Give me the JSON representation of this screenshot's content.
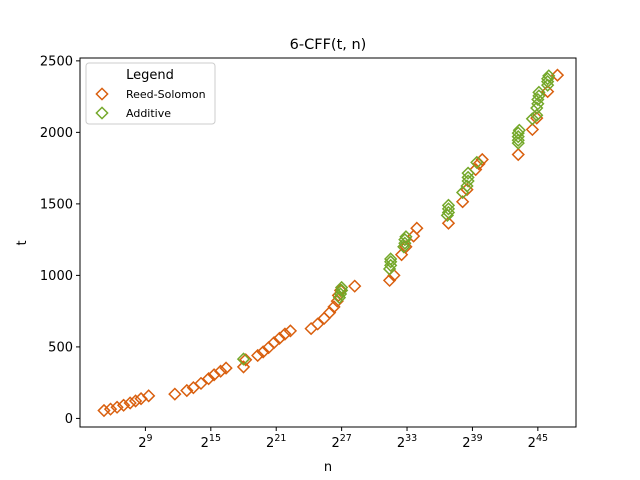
{
  "chart_data": {
    "type": "scatter",
    "title": "6-CFF(t, n)",
    "xlabel": "n",
    "ylabel": "t",
    "x_scale": "log2",
    "x_tick_exponents": [
      9,
      15,
      21,
      27,
      33,
      39,
      45
    ],
    "x_tick_base": "2",
    "xlim_log2": [
      3.0,
      48.5
    ],
    "ylim": [
      -60,
      2520
    ],
    "y_ticks": [
      0,
      500,
      1000,
      1500,
      2000,
      2500
    ],
    "legend": {
      "title": "Legend",
      "position": "top-left"
    },
    "marker": "open-diamond",
    "series": [
      {
        "name": "Reed-Solomon",
        "color": "#d95f0e",
        "points_log2x": [
          [
            5.2,
            55
          ],
          [
            5.8,
            65
          ],
          [
            6.4,
            78
          ],
          [
            7.0,
            92
          ],
          [
            7.6,
            108
          ],
          [
            8.1,
            122
          ],
          [
            8.6,
            138
          ],
          [
            9.3,
            158
          ],
          [
            11.7,
            170
          ],
          [
            12.8,
            195
          ],
          [
            13.4,
            215
          ],
          [
            14.1,
            245
          ],
          [
            14.8,
            278
          ],
          [
            15.3,
            305
          ],
          [
            15.9,
            330
          ],
          [
            16.4,
            352
          ],
          [
            18.0,
            360
          ],
          [
            18.2,
            410
          ],
          [
            19.3,
            440
          ],
          [
            19.8,
            465
          ],
          [
            20.3,
            495
          ],
          [
            20.8,
            530
          ],
          [
            21.3,
            560
          ],
          [
            21.8,
            590
          ],
          [
            22.3,
            612
          ],
          [
            24.2,
            628
          ],
          [
            24.8,
            660
          ],
          [
            25.4,
            700
          ],
          [
            25.9,
            740
          ],
          [
            26.3,
            780
          ],
          [
            26.6,
            820
          ],
          [
            26.7,
            860
          ],
          [
            26.9,
            895
          ],
          [
            28.2,
            925
          ],
          [
            31.4,
            965
          ],
          [
            31.8,
            1000
          ],
          [
            32.5,
            1145
          ],
          [
            32.9,
            1200
          ],
          [
            33.6,
            1275
          ],
          [
            33.9,
            1330
          ],
          [
            36.8,
            1365
          ],
          [
            38.1,
            1515
          ],
          [
            38.5,
            1600
          ],
          [
            39.3,
            1740
          ],
          [
            39.6,
            1780
          ],
          [
            39.9,
            1810
          ],
          [
            43.2,
            1845
          ],
          [
            44.5,
            2020
          ],
          [
            44.9,
            2100
          ],
          [
            45.9,
            2285
          ],
          [
            46.8,
            2400
          ]
        ]
      },
      {
        "name": "Additive",
        "color": "#74a82a",
        "points_log2x": [
          [
            18.0,
            415
          ],
          [
            26.8,
            845
          ],
          [
            26.9,
            870
          ],
          [
            27.0,
            895
          ],
          [
            27.0,
            915
          ],
          [
            31.4,
            1045
          ],
          [
            31.5,
            1070
          ],
          [
            31.5,
            1095
          ],
          [
            31.5,
            1115
          ],
          [
            32.7,
            1200
          ],
          [
            32.8,
            1225
          ],
          [
            32.8,
            1250
          ],
          [
            32.9,
            1270
          ],
          [
            36.7,
            1420
          ],
          [
            36.8,
            1440
          ],
          [
            36.8,
            1465
          ],
          [
            36.8,
            1490
          ],
          [
            38.1,
            1580
          ],
          [
            38.5,
            1625
          ],
          [
            38.6,
            1660
          ],
          [
            38.6,
            1685
          ],
          [
            38.6,
            1715
          ],
          [
            39.4,
            1790
          ],
          [
            43.2,
            1925
          ],
          [
            43.2,
            1945
          ],
          [
            43.2,
            1970
          ],
          [
            43.2,
            1995
          ],
          [
            43.3,
            2015
          ],
          [
            44.5,
            2095
          ],
          [
            44.9,
            2120
          ],
          [
            44.9,
            2170
          ],
          [
            45.0,
            2200
          ],
          [
            45.0,
            2230
          ],
          [
            45.1,
            2255
          ],
          [
            45.1,
            2280
          ],
          [
            45.9,
            2330
          ],
          [
            45.9,
            2355
          ],
          [
            45.9,
            2375
          ],
          [
            46.0,
            2395
          ]
        ]
      }
    ]
  }
}
